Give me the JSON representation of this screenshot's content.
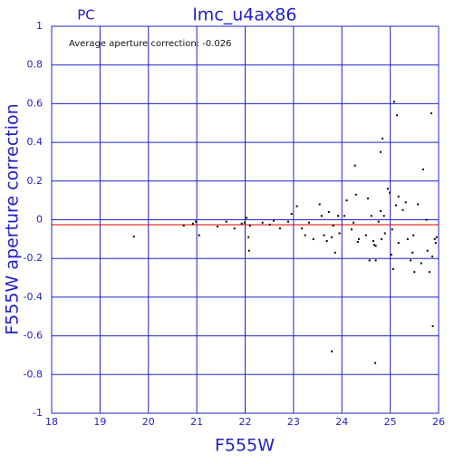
{
  "chart_data": {
    "type": "scatter",
    "title": "lmc_u4ax86",
    "subtitle": "PC",
    "annotation": "Average aperture correction: -0.026",
    "x_label": "F555W",
    "y_label": "F555W aperture correction",
    "xlim": [
      18,
      26
    ],
    "xticks": [
      18,
      19,
      20,
      21,
      22,
      23,
      24,
      25,
      26
    ],
    "ylim": [
      -1,
      1
    ],
    "yticks": [
      -1,
      -0.8,
      -0.6,
      -0.4,
      -0.2,
      0,
      0.2,
      0.4,
      0.6,
      0.8,
      1
    ],
    "grid": true,
    "grid_color": "#2020c8",
    "color": "#000000",
    "hline": -0.026,
    "hline_color": "#e00000",
    "x": [
      19.7,
      20.73,
      20.92,
      20.98,
      21.05,
      21.43,
      21.61,
      21.78,
      21.93,
      21.99,
      22.03,
      22.07,
      22.08,
      22.1,
      22.36,
      22.51,
      22.59,
      22.72,
      22.89,
      22.96,
      23.07,
      23.17,
      23.24,
      23.32,
      23.41,
      23.54,
      23.58,
      23.63,
      23.69,
      23.73,
      23.79,
      23.79,
      23.82,
      23.86,
      23.92,
      23.95,
      24.05,
      24.1,
      24.2,
      24.24,
      24.27,
      24.29,
      24.33,
      24.35,
      24.5,
      24.54,
      24.57,
      24.61,
      24.65,
      24.67,
      24.7,
      24.7,
      24.69,
      24.76,
      24.8,
      24.8,
      24.82,
      24.84,
      24.87,
      24.89,
      24.95,
      24.99,
      25.02,
      25.04,
      25.06,
      25.08,
      25.12,
      25.14,
      25.17,
      25.17,
      25.26,
      25.32,
      25.36,
      25.42,
      25.46,
      25.48,
      25.5,
      25.57,
      25.64,
      25.68,
      25.75,
      25.77,
      25.81,
      25.85,
      25.87,
      25.88,
      25.92,
      25.94,
      25.96
    ],
    "values": [
      -0.087,
      -0.03,
      -0.02,
      -0.01,
      -0.08,
      -0.035,
      -0.01,
      -0.045,
      -0.02,
      -0.015,
      0.01,
      -0.09,
      -0.16,
      -0.03,
      -0.015,
      -0.025,
      -0.005,
      -0.045,
      -0.01,
      0.03,
      0.07,
      -0.045,
      -0.08,
      -0.015,
      -0.1,
      0.08,
      0.02,
      -0.08,
      -0.11,
      0.04,
      -0.09,
      -0.68,
      -0.03,
      -0.17,
      0.02,
      -0.07,
      0.02,
      0.1,
      -0.05,
      -0.015,
      0.28,
      0.13,
      -0.115,
      -0.1,
      -0.08,
      0.11,
      -0.21,
      0.02,
      -0.11,
      -0.13,
      -0.135,
      -0.21,
      -0.74,
      -0.01,
      0.045,
      0.35,
      -0.1,
      0.42,
      0.02,
      -0.07,
      0.16,
      0.14,
      -0.18,
      -0.05,
      -0.255,
      0.61,
      0.075,
      0.54,
      0.12,
      -0.12,
      0.05,
      0.09,
      -0.1,
      -0.21,
      -0.17,
      -0.08,
      -0.27,
      0.08,
      -0.225,
      0.26,
      0.0,
      -0.16,
      -0.27,
      0.55,
      -0.19,
      -0.55,
      -0.1,
      -0.12,
      -0.09
    ]
  }
}
